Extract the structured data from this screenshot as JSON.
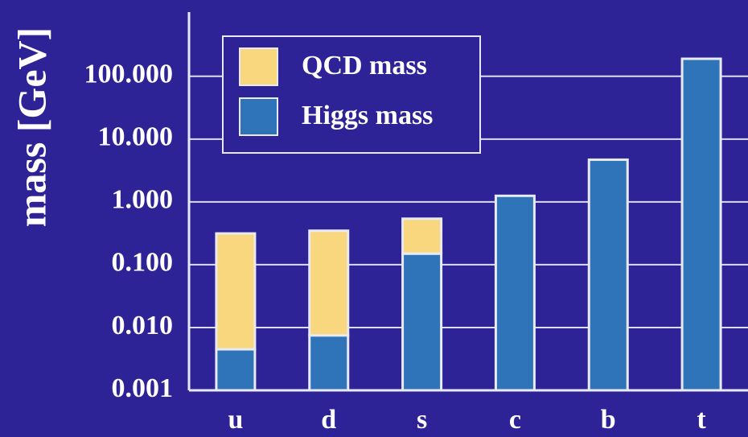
{
  "chart_data": {
    "type": "stacked_bar",
    "ylabel": "mass [GeV]",
    "categories": [
      "u",
      "d",
      "s",
      "c",
      "b",
      "t"
    ],
    "series": [
      {
        "name": "Higgs mass",
        "color": "#2f74b8",
        "values": [
          0.0045,
          0.0075,
          0.15,
          1.25,
          4.7,
          190
        ]
      },
      {
        "name": "QCD mass",
        "color": "#f8d77e",
        "values": [
          0.31,
          0.34,
          0.39,
          0,
          0,
          0
        ]
      }
    ],
    "legend_order": [
      "QCD mass",
      "Higgs mass"
    ],
    "log_scale": true,
    "ylim": [
      0.001,
      1500
    ],
    "yticks": [
      0.001,
      {
        "value": 0.01,
        "label": "0.010"
      },
      {
        "value": 0.1,
        "label": "0.100"
      },
      {
        "value": 1,
        "label": "1.000"
      },
      {
        "value": 10,
        "label": "10.000"
      },
      {
        "value": 100,
        "label": "100.000"
      }
    ],
    "grid": true,
    "legend": "upper left"
  }
}
